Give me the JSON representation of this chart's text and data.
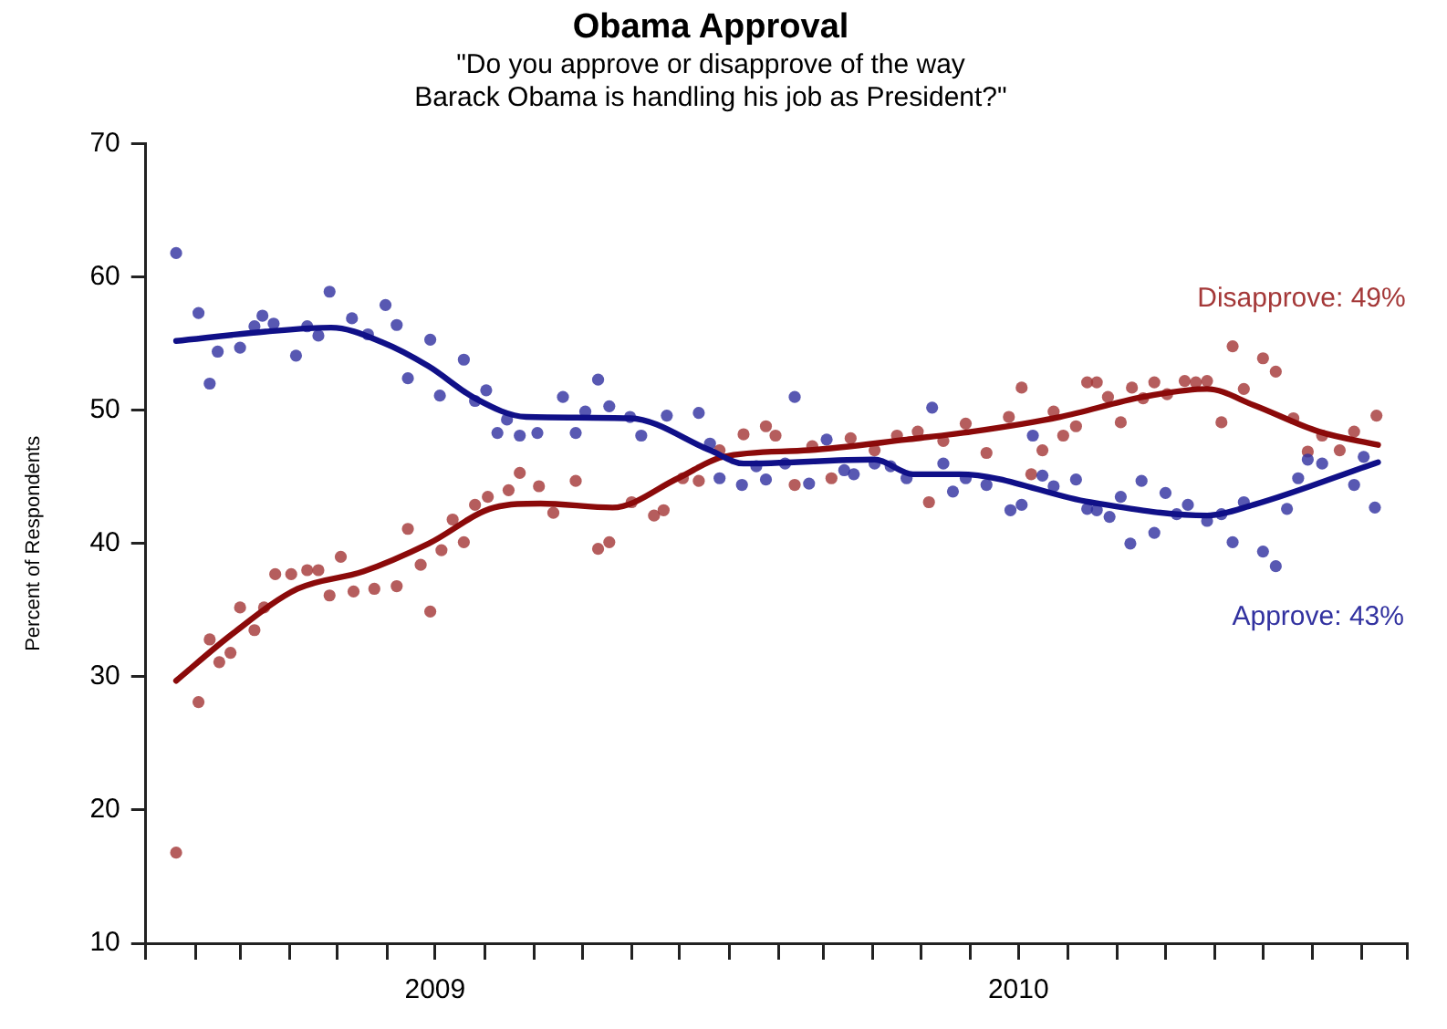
{
  "chart_data": {
    "type": "scatter",
    "title": "Obama Approval",
    "subtitle": "\"Do you approve or disapprove of the way\nBarack Obama is handling his job as President?\"",
    "ylabel": "Percent of Respondents",
    "xlim": [
      "2009-01-01",
      "2011-03-01"
    ],
    "xticks": [
      {
        "value": "2009-01-01",
        "label": null
      },
      {
        "value": "2009-02-01",
        "label": null
      },
      {
        "value": "2009-03-01",
        "label": null
      },
      {
        "value": "2009-04-01",
        "label": null
      },
      {
        "value": "2009-05-01",
        "label": null
      },
      {
        "value": "2009-06-01",
        "label": null
      },
      {
        "value": "2009-07-01",
        "label": "2009"
      },
      {
        "value": "2009-08-01",
        "label": null
      },
      {
        "value": "2009-09-01",
        "label": null
      },
      {
        "value": "2009-10-01",
        "label": null
      },
      {
        "value": "2009-11-01",
        "label": null
      },
      {
        "value": "2009-12-01",
        "label": null
      },
      {
        "value": "2010-01-01",
        "label": null
      },
      {
        "value": "2010-02-01",
        "label": null
      },
      {
        "value": "2010-03-01",
        "label": null
      },
      {
        "value": "2010-04-01",
        "label": null
      },
      {
        "value": "2010-05-01",
        "label": null
      },
      {
        "value": "2010-06-01",
        "label": null
      },
      {
        "value": "2010-07-01",
        "label": "2010"
      },
      {
        "value": "2010-08-01",
        "label": null
      },
      {
        "value": "2010-09-01",
        "label": null
      },
      {
        "value": "2010-10-01",
        "label": null
      },
      {
        "value": "2010-11-01",
        "label": null
      },
      {
        "value": "2010-12-01",
        "label": null
      },
      {
        "value": "2011-01-01",
        "label": null
      },
      {
        "value": "2011-02-01",
        "label": null
      },
      {
        "value": "2011-03-01",
        "label": null
      }
    ],
    "ylim": [
      10,
      70
    ],
    "yticks": [
      10,
      20,
      30,
      40,
      50,
      60,
      70
    ],
    "grid": false,
    "legend": false,
    "series": [
      {
        "name": "Approve: 43%",
        "type": "scatter",
        "marker": "circle",
        "color": "#3232a0",
        "x": [
          "2009-01-20",
          "2009-02-03",
          "2009-02-10",
          "2009-02-15",
          "2009-03-01",
          "2009-03-10",
          "2009-03-15",
          "2009-03-22",
          "2009-04-05",
          "2009-04-12",
          "2009-04-19",
          "2009-04-26",
          "2009-05-10",
          "2009-05-20",
          "2009-05-31",
          "2009-06-07",
          "2009-06-14",
          "2009-06-28",
          "2009-07-04",
          "2009-07-19",
          "2009-07-26",
          "2009-08-02",
          "2009-08-09",
          "2009-08-15",
          "2009-08-23",
          "2009-09-03",
          "2009-09-19",
          "2009-09-27",
          "2009-10-03",
          "2009-10-11",
          "2009-10-18",
          "2009-10-31",
          "2009-11-07",
          "2009-11-23",
          "2009-12-13",
          "2009-12-20",
          "2009-12-26",
          "2010-01-09",
          "2010-01-18",
          "2010-01-24",
          "2010-02-05",
          "2010-02-11",
          "2010-02-20",
          "2010-03-03",
          "2010-03-14",
          "2010-03-20",
          "2010-04-02",
          "2010-04-12",
          "2010-04-22",
          "2010-05-08",
          "2010-05-15",
          "2010-05-21",
          "2010-05-29",
          "2010-06-11",
          "2010-06-26",
          "2010-07-03",
          "2010-07-10",
          "2010-07-16",
          "2010-07-23",
          "2010-08-06",
          "2010-08-13",
          "2010-08-19",
          "2010-08-27",
          "2010-09-03",
          "2010-09-09",
          "2010-09-16",
          "2010-09-24",
          "2010-10-01",
          "2010-10-08",
          "2010-10-15",
          "2010-10-27",
          "2010-11-05",
          "2010-11-12",
          "2010-11-19",
          "2010-12-01",
          "2010-12-09",
          "2010-12-16",
          "2010-12-23",
          "2010-12-29",
          "2011-01-07",
          "2011-01-27",
          "2011-02-02",
          "2011-02-09"
        ],
        "values": [
          61.8,
          57.3,
          52.0,
          54.4,
          54.7,
          56.3,
          57.1,
          56.5,
          54.1,
          56.3,
          55.6,
          58.9,
          56.9,
          55.7,
          57.9,
          56.4,
          52.4,
          55.3,
          51.1,
          53.8,
          50.7,
          51.5,
          48.3,
          49.3,
          48.1,
          48.3,
          51.0,
          48.3,
          49.9,
          52.3,
          50.3,
          49.5,
          48.1,
          49.6,
          49.8,
          47.5,
          44.9,
          44.4,
          45.8,
          44.8,
          46.0,
          51.0,
          44.5,
          47.8,
          45.5,
          45.2,
          46.0,
          45.8,
          44.9,
          50.2,
          46.0,
          43.9,
          44.9,
          44.4,
          42.5,
          42.9,
          48.1,
          45.1,
          44.3,
          44.8,
          42.6,
          42.5,
          42.0,
          43.5,
          40.0,
          44.7,
          40.8,
          43.8,
          42.2,
          42.9,
          41.7,
          42.2,
          40.1,
          43.1,
          39.4,
          38.3,
          42.6,
          44.9,
          46.3,
          46.0,
          44.4,
          46.5,
          42.7
        ]
      },
      {
        "name": "Disapprove: 49%",
        "type": "scatter",
        "marker": "circle",
        "color": "#a43838",
        "x": [
          "2009-01-20",
          "2009-02-03",
          "2009-02-10",
          "2009-02-16",
          "2009-02-23",
          "2009-03-01",
          "2009-03-10",
          "2009-03-16",
          "2009-03-23",
          "2009-04-02",
          "2009-04-12",
          "2009-04-19",
          "2009-04-26",
          "2009-05-03",
          "2009-05-11",
          "2009-05-24",
          "2009-06-07",
          "2009-06-14",
          "2009-06-22",
          "2009-06-28",
          "2009-07-05",
          "2009-07-12",
          "2009-07-19",
          "2009-07-26",
          "2009-08-03",
          "2009-08-16",
          "2009-08-23",
          "2009-09-04",
          "2009-09-13",
          "2009-09-27",
          "2009-10-11",
          "2009-10-18",
          "2009-11-01",
          "2009-11-15",
          "2009-11-21",
          "2009-12-03",
          "2009-12-13",
          "2009-12-26",
          "2010-01-10",
          "2010-01-24",
          "2010-01-30",
          "2010-02-11",
          "2010-02-22",
          "2010-03-06",
          "2010-03-18",
          "2010-04-02",
          "2010-04-16",
          "2010-04-29",
          "2010-05-06",
          "2010-05-15",
          "2010-05-29",
          "2010-06-11",
          "2010-06-25",
          "2010-07-03",
          "2010-07-09",
          "2010-07-16",
          "2010-07-23",
          "2010-07-29",
          "2010-08-06",
          "2010-08-13",
          "2010-08-19",
          "2010-08-26",
          "2010-09-03",
          "2010-09-10",
          "2010-09-17",
          "2010-09-24",
          "2010-10-02",
          "2010-10-13",
          "2010-10-20",
          "2010-10-27",
          "2010-11-05",
          "2010-11-12",
          "2010-11-19",
          "2010-12-01",
          "2010-12-09",
          "2010-12-20",
          "2010-12-29",
          "2011-01-07",
          "2011-01-18",
          "2011-01-27",
          "2011-02-10"
        ],
        "values": [
          16.8,
          28.1,
          32.8,
          31.1,
          31.8,
          35.2,
          33.5,
          35.2,
          37.7,
          37.7,
          38.0,
          38.0,
          36.1,
          39.0,
          36.4,
          36.6,
          36.8,
          41.1,
          38.4,
          34.9,
          39.5,
          41.8,
          40.1,
          42.9,
          43.5,
          44.0,
          45.3,
          44.3,
          42.3,
          44.7,
          39.6,
          40.1,
          43.1,
          42.1,
          42.5,
          44.9,
          44.7,
          47.0,
          48.2,
          48.8,
          48.1,
          44.4,
          47.3,
          44.9,
          47.9,
          47.0,
          48.1,
          48.4,
          43.1,
          47.7,
          49.0,
          46.8,
          49.5,
          51.7,
          45.2,
          47.0,
          49.9,
          48.1,
          48.8,
          52.1,
          52.1,
          51.0,
          49.1,
          51.7,
          50.9,
          52.1,
          51.2,
          52.2,
          52.1,
          52.2,
          49.1,
          54.8,
          51.6,
          53.9,
          52.9,
          49.4,
          46.9,
          48.1,
          47.0,
          48.4,
          49.6
        ]
      },
      {
        "type": "line",
        "marker": "none",
        "line_style": "solid",
        "color": "#101088",
        "x": [
          "2009-01-20",
          "2009-03-17",
          "2009-04-27",
          "2009-05-29",
          "2009-06-27",
          "2009-07-26",
          "2009-08-27",
          "2009-10-31",
          "2009-12-20",
          "2010-01-10",
          "2010-04-02",
          "2010-04-26",
          "2010-05-25",
          "2010-08-15",
          "2010-10-27",
          "2010-11-25",
          "2011-02-11"
        ],
        "values": [
          55.2,
          55.9,
          56.2,
          55.1,
          53.3,
          50.9,
          49.5,
          49.4,
          47.0,
          46.0,
          46.3,
          45.2,
          45.2,
          43.1,
          42.1,
          42.9,
          46.1
        ]
      },
      {
        "type": "line",
        "marker": "none",
        "line_style": "solid",
        "color": "#8b0a0a",
        "x": [
          "2009-01-20",
          "2009-02-24",
          "2009-04-06",
          "2009-05-17",
          "2009-06-27",
          "2009-08-07",
          "2009-09-05",
          "2009-10-20",
          "2009-11-30",
          "2009-12-28",
          "2010-02-20",
          "2010-04-22",
          "2010-06-02",
          "2010-07-27",
          "2010-09-17",
          "2010-10-27",
          "2010-11-25",
          "2011-01-05",
          "2011-02-11"
        ],
        "values": [
          29.7,
          33.2,
          36.6,
          37.9,
          40.0,
          42.7,
          43.0,
          42.7,
          44.9,
          46.5,
          47.0,
          47.8,
          48.4,
          49.5,
          51.0,
          51.6,
          50.4,
          48.4,
          47.4
        ]
      }
    ]
  }
}
